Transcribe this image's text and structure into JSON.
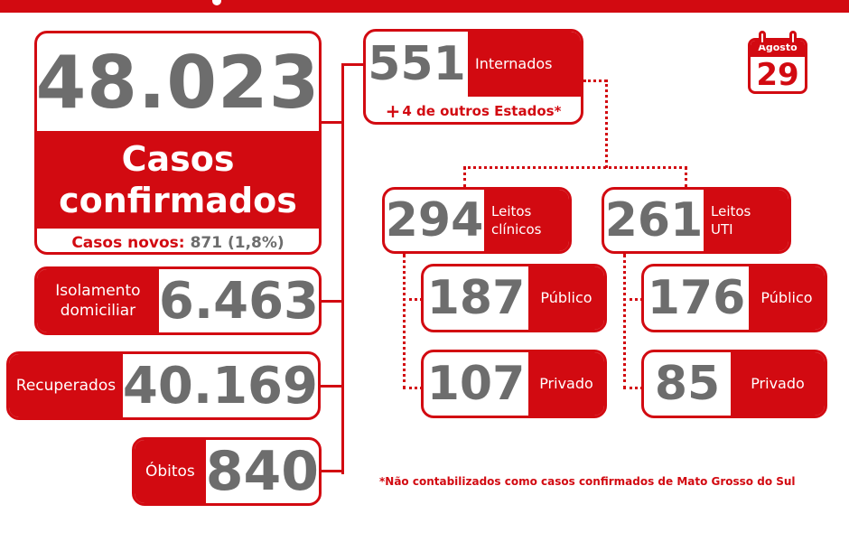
{
  "casos_confirmados": {
    "valor": "48.023",
    "rotulo_linha1": "Casos",
    "rotulo_linha2": "confirmados",
    "novos_rotulo": "Casos novos:",
    "novos_valor": "871 (1,8%)"
  },
  "isolamento": {
    "rotulo_linha1": "Isolamento",
    "rotulo_linha2": "domiciliar",
    "valor": "6.463"
  },
  "recuperados": {
    "rotulo": "Recuperados",
    "valor": "40.169"
  },
  "obitos": {
    "rotulo": "Óbitos",
    "valor": "840"
  },
  "internados": {
    "valor": "551",
    "rotulo": "Internados",
    "outros_estados_sinal": "+",
    "outros_estados": "4 de outros Estados*"
  },
  "leitos_clinicos": {
    "valor": "294",
    "rotulo_linha1": "Leitos",
    "rotulo_linha2": "clínicos",
    "publico": {
      "valor": "187",
      "rotulo": "Público"
    },
    "privado": {
      "valor": "107",
      "rotulo": "Privado"
    }
  },
  "leitos_uti": {
    "valor": "261",
    "rotulo_linha1": "Leitos",
    "rotulo_linha2": "UTI",
    "publico": {
      "valor": "176",
      "rotulo": "Público"
    },
    "privado": {
      "valor": "85",
      "rotulo": "Privado"
    }
  },
  "calendario": {
    "mes": "Agosto",
    "dia": "29",
    "icon": "calendar-icon"
  },
  "nota_rodape": "*Não contabilizados como casos confirmados de Mato Grosso do Sul",
  "cores": {
    "vermelho": "#d20a11",
    "cinza_numero": "#6d6d6d",
    "fundo": "#ffffff"
  }
}
